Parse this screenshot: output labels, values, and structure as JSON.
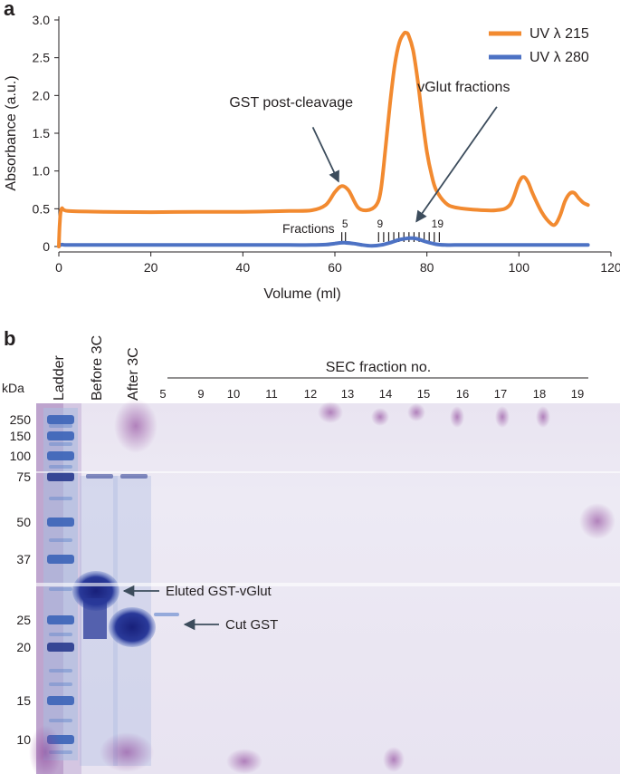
{
  "panel_a": {
    "label": "a"
  },
  "panel_b": {
    "label": "b"
  },
  "colors": {
    "uv215": "#f28a30",
    "uv280": "#4d72c4",
    "text": "#231f20"
  },
  "chart_data": {
    "type": "line",
    "xlabel": "Volume (ml)",
    "ylabel": "Absorbance (a.u.)",
    "xlim": [
      0,
      120
    ],
    "ylim": [
      0,
      3.0
    ],
    "x_ticks": [
      0,
      20,
      40,
      60,
      80,
      100,
      120
    ],
    "y_ticks": [
      0,
      0.5,
      1.0,
      1.5,
      2.0,
      2.5,
      3.0
    ],
    "y_tick_labels": [
      "0",
      "0.5",
      "1.0",
      "1.5",
      "2.0",
      "2.5",
      "3.0"
    ],
    "legend": {
      "position": "top-right",
      "entries": [
        "UV λ 215",
        "UV λ 280"
      ]
    },
    "series": [
      {
        "name": "UV λ 215",
        "x": [
          0,
          0.2,
          0.6,
          2,
          10,
          20,
          30,
          40,
          50,
          55,
          58,
          60,
          61.5,
          63,
          65,
          67,
          69,
          70,
          71,
          72,
          73,
          74,
          75,
          75.5,
          76,
          77,
          78,
          79,
          80,
          81,
          82,
          84,
          86,
          90,
          95,
          98,
          100,
          101,
          102,
          103,
          105,
          107,
          108,
          109,
          110,
          111,
          112,
          113,
          114,
          115
        ],
        "y": [
          0,
          0.3,
          0.5,
          0.47,
          0.46,
          0.455,
          0.46,
          0.46,
          0.47,
          0.48,
          0.55,
          0.72,
          0.8,
          0.74,
          0.52,
          0.48,
          0.55,
          0.75,
          1.3,
          1.9,
          2.4,
          2.7,
          2.82,
          2.83,
          2.8,
          2.6,
          2.2,
          1.7,
          1.25,
          0.95,
          0.75,
          0.58,
          0.52,
          0.49,
          0.48,
          0.55,
          0.85,
          0.92,
          0.85,
          0.7,
          0.45,
          0.3,
          0.3,
          0.42,
          0.6,
          0.7,
          0.71,
          0.64,
          0.58,
          0.55
        ]
      },
      {
        "name": "UV λ 280",
        "x": [
          0,
          0.3,
          0.8,
          2,
          10,
          20,
          30,
          40,
          50,
          55,
          58,
          60,
          62,
          64,
          66,
          68,
          70,
          72,
          74,
          76,
          77,
          78,
          80,
          82,
          84,
          86,
          90,
          100,
          110,
          115
        ],
        "y": [
          0,
          0.02,
          0.025,
          0.02,
          0.02,
          0.02,
          0.02,
          0.02,
          0.02,
          0.02,
          0.025,
          0.04,
          0.05,
          0.04,
          0.02,
          0.01,
          0.02,
          0.05,
          0.09,
          0.11,
          0.11,
          0.1,
          0.06,
          0.03,
          0.02,
          0.02,
          0.02,
          0.02,
          0.02,
          0.02
        ]
      }
    ],
    "fractions": {
      "label": "Fractions",
      "tick_x": [
        61.5,
        62.3,
        69.5,
        70.6,
        71.7,
        72.8,
        73.9,
        75.0,
        76.1,
        77.2,
        78.3,
        79.4,
        80.5,
        81.6,
        82.7
      ],
      "tick_labels": [
        {
          "text": "5",
          "x": 62.2
        },
        {
          "text": "9",
          "x": 69.8
        },
        {
          "text": "19",
          "x": 82.3
        }
      ]
    },
    "annotations": [
      {
        "text": "GST post-cleavage",
        "text_x": 50.5,
        "text_y": 1.85,
        "arrow_from": [
          55.2,
          1.58
        ],
        "arrow_to": [
          60.8,
          0.86
        ]
      },
      {
        "text": "vGlut fractions",
        "text_x": 88,
        "text_y": 2.05,
        "arrow_from": [
          95.2,
          1.85
        ],
        "arrow_to": [
          77.7,
          0.33
        ]
      }
    ]
  },
  "gel": {
    "kda_label": "kDa",
    "marker_labels": [
      "250",
      "150",
      "100",
      "75",
      "50",
      "37",
      "25",
      "20",
      "15",
      "10"
    ],
    "lane_labels": [
      "Ladder",
      "Before 3C",
      "After 3C"
    ],
    "sec_title": "SEC fraction no.",
    "sec_fractions": [
      "5",
      "9",
      "10",
      "11",
      "12",
      "13",
      "14",
      "15",
      "16",
      "17",
      "18",
      "19"
    ],
    "arrows": [
      "Eluted GST-vGlut",
      "Cut GST"
    ]
  }
}
